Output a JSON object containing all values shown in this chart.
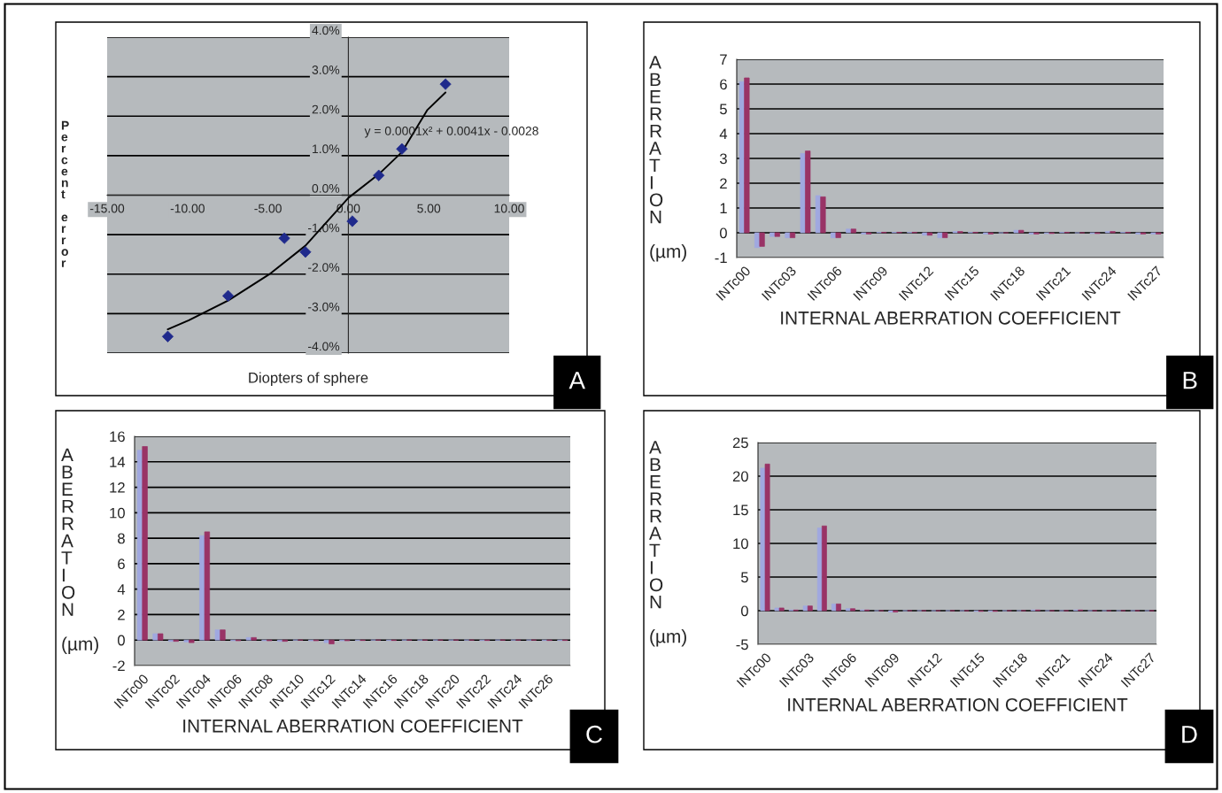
{
  "chart_data": [
    {
      "type": "scatter",
      "xlabel": "Diopters of sphere",
      "ylabel": "Percent error",
      "xlim": [
        -15,
        10
      ],
      "ylim": [
        -4,
        4
      ],
      "xticks": [
        {
          "value": -15,
          "label": "-15.00"
        },
        {
          "value": -10,
          "label": "-10.00"
        },
        {
          "value": -5,
          "label": "-5.00"
        },
        {
          "value": 0,
          "label": "0.00"
        },
        {
          "value": 5,
          "label": "5.00"
        },
        {
          "value": 10,
          "label": "10.00"
        }
      ],
      "yticks": [
        {
          "value": -4,
          "label": "-4.0%"
        },
        {
          "value": -3,
          "label": "-3.0%"
        },
        {
          "value": -2,
          "label": "-2.0%"
        },
        {
          "value": -1,
          "label": "-1.0%"
        },
        {
          "value": 0,
          "label": "0.0%"
        },
        {
          "value": 1,
          "label": "1.0%"
        },
        {
          "value": 2,
          "label": "2.0%"
        },
        {
          "value": 3,
          "label": "3.0%"
        },
        {
          "value": 4,
          "label": "4.0%"
        }
      ],
      "grid": "y",
      "series": [
        {
          "type": "scatter",
          "color": "#1f2a8c",
          "marker": "diamond",
          "x": [
            -11.23,
            -7.48,
            -3.98,
            -2.67,
            0.25,
            1.89,
            3.33,
            6.04
          ],
          "values": [
            -3.58,
            -2.55,
            -1.09,
            -1.44,
            -0.66,
            0.5,
            1.17,
            2.81
          ]
        },
        {
          "type": "line",
          "color": "#000000",
          "marker": "none",
          "x": [
            -11.23,
            -9.92,
            -7.48,
            -4.83,
            -2.67,
            0,
            1.89,
            3.33,
            4.92,
            6.04
          ],
          "values": [
            -3.4,
            -3.17,
            -2.67,
            -1.98,
            -1.28,
            -0.07,
            0.53,
            1.09,
            2.16,
            2.6
          ]
        }
      ],
      "annotations": [
        "y = 0.0001x² + 0.0041x - 0.0028",
        "A"
      ]
    },
    {
      "type": "bar",
      "xlabel": "INTERNAL ABERRATION COEFFICIENT",
      "ylabel": "ABERRATION (µm)",
      "ylim": [
        -1,
        7
      ],
      "yticks": [
        -1,
        0,
        1,
        2,
        3,
        4,
        5,
        6,
        7
      ],
      "grid": "y",
      "categories": [
        "INTc00",
        null,
        null,
        "INTc03",
        null,
        null,
        "INTc06",
        null,
        null,
        "INTc09",
        null,
        null,
        "INTc12",
        null,
        null,
        "INTc15",
        null,
        null,
        "INTc18",
        null,
        null,
        "INTc21",
        null,
        null,
        "INTc24",
        null,
        null,
        "INTc27"
      ],
      "series": [
        {
          "color": "#a0a8e0",
          "values": [
            6.1,
            -0.6,
            -0.15,
            -0.2,
            3.2,
            1.5,
            -0.2,
            0.15,
            -0.05,
            0.02,
            0.02,
            0.02,
            -0.1,
            -0.2,
            0.05,
            0.02,
            -0.05,
            0,
            0.1,
            -0.05,
            -0.03,
            0.02,
            0,
            -0.03,
            0.05,
            0.02,
            -0.05,
            -0.05
          ]
        },
        {
          "color": "#993366",
          "values": [
            6.25,
            -0.55,
            -0.15,
            -0.2,
            3.3,
            1.45,
            -0.2,
            0.15,
            -0.05,
            0.02,
            0.02,
            0.02,
            -0.1,
            -0.2,
            0.05,
            0.02,
            -0.05,
            0,
            0.1,
            -0.05,
            -0.03,
            0.02,
            0,
            -0.03,
            0.05,
            0.02,
            -0.05,
            -0.05
          ]
        }
      ],
      "annotations": [
        "B"
      ]
    },
    {
      "type": "bar",
      "xlabel": "INTERNAL ABERRATION COEFFICIENT",
      "ylabel": "ABERRATION (µm)",
      "ylim": [
        -2,
        16
      ],
      "yticks": [
        -2,
        0,
        2,
        4,
        6,
        8,
        10,
        12,
        14,
        16
      ],
      "grid": "y",
      "categories": [
        "INTc00",
        null,
        "INTc02",
        null,
        "INTc04",
        null,
        "INTc06",
        null,
        "INTc08",
        null,
        "INTc10",
        null,
        "INTc12",
        null,
        "INTc14",
        null,
        "INTc16",
        null,
        "INTc18",
        null,
        "INTc20",
        null,
        "INTc22",
        null,
        "INTc24",
        null,
        "INTc26",
        null
      ],
      "series": [
        {
          "color": "#a0a8e0",
          "values": [
            14.9,
            0.5,
            -0.1,
            -0.15,
            8.2,
            0.8,
            -0.05,
            0.2,
            -0.05,
            -0.1,
            0,
            -0.05,
            -0.2,
            -0.05,
            -0.03,
            0,
            -0.03,
            0,
            0,
            0,
            0,
            0,
            -0.03,
            0,
            0,
            0,
            -0.03,
            -0.03
          ]
        },
        {
          "color": "#993366",
          "values": [
            15.2,
            0.5,
            -0.1,
            -0.2,
            8.5,
            0.8,
            -0.05,
            0.2,
            -0.05,
            -0.1,
            0,
            -0.05,
            -0.3,
            -0.05,
            -0.03,
            0,
            -0.03,
            0,
            0,
            0,
            0,
            0,
            -0.03,
            0,
            0,
            0,
            -0.03,
            -0.03
          ]
        }
      ],
      "annotations": [
        "C"
      ]
    },
    {
      "type": "bar",
      "xlabel": "INTERNAL ABERRATION COEFFICIENT",
      "ylabel": "ABERRATION (µm)",
      "ylim": [
        -5,
        25
      ],
      "yticks": [
        -5,
        0,
        5,
        10,
        15,
        20,
        25
      ],
      "grid": "y",
      "categories": [
        "INTc00",
        null,
        null,
        "INTc03",
        null,
        null,
        "INTc06",
        null,
        null,
        "INTc09",
        null,
        null,
        "INTc12",
        null,
        null,
        "INTc15",
        null,
        null,
        "INTc18",
        null,
        null,
        "INTc21",
        null,
        null,
        "INTc24",
        null,
        null,
        "INTc27"
      ],
      "series": [
        {
          "color": "#a0a8e0",
          "values": [
            21.2,
            0.4,
            0.1,
            0.7,
            12.3,
            1.0,
            0.3,
            0.1,
            0,
            -0.2,
            0,
            0,
            0,
            0,
            0,
            -0.1,
            -0.1,
            0,
            0,
            0.1,
            0,
            0,
            0.1,
            0,
            0,
            0,
            0,
            0
          ]
        },
        {
          "color": "#993366",
          "values": [
            21.8,
            0.4,
            0.1,
            0.7,
            12.6,
            1.0,
            0.3,
            0.1,
            0,
            -0.2,
            0,
            0,
            0,
            0,
            0,
            -0.1,
            -0.1,
            0,
            0,
            0.1,
            0,
            0,
            0.1,
            0,
            0,
            0,
            0,
            0
          ]
        }
      ],
      "annotations": [
        "D"
      ]
    }
  ]
}
